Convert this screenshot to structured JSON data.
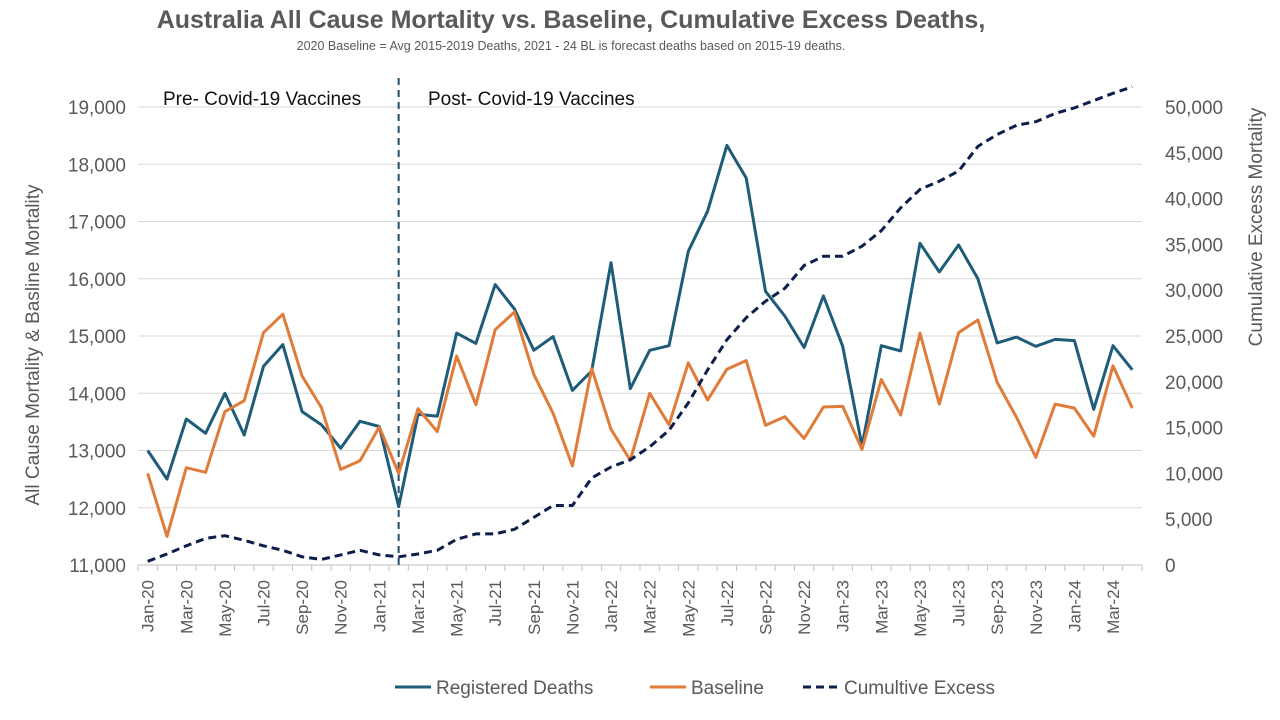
{
  "chart_data": {
    "type": "line",
    "title": "Australia All Cause Mortality vs. Baseline, Cumulative Excess Deaths,",
    "subtitle": "2020 Baseline = Avg 2015-2019 Deaths, 2021 - 24 BL is forecast deaths based on 2015-19 deaths.",
    "ylabel": "All Cause Mortality & Basline Mortality",
    "y2label": "Cumulative Excess Mortality",
    "ylim": [
      11000,
      19000
    ],
    "y2lim": [
      0,
      50000
    ],
    "y_ticks": [
      "11,000",
      "12,000",
      "13,000",
      "14,000",
      "15,000",
      "16,000",
      "17,000",
      "18,000",
      "19,000"
    ],
    "y2_ticks": [
      "0",
      "5,000",
      "10,000",
      "15,000",
      "20,000",
      "25,000",
      "30,000",
      "35,000",
      "40,000",
      "45,000",
      "50,000"
    ],
    "x": [
      "Jan-20",
      "Feb-20",
      "Mar-20",
      "Apr-20",
      "May-20",
      "Jun-20",
      "Jul-20",
      "Aug-20",
      "Sep-20",
      "Oct-20",
      "Nov-20",
      "Dec-20",
      "Jan-21",
      "Feb-21",
      "Mar-21",
      "Apr-21",
      "May-21",
      "Jun-21",
      "Jul-21",
      "Aug-21",
      "Sep-21",
      "Oct-21",
      "Nov-21",
      "Dec-21",
      "Jan-22",
      "Feb-22",
      "Mar-22",
      "Apr-22",
      "May-22",
      "Jun-22",
      "Jul-22",
      "Aug-22",
      "Sep-22",
      "Oct-22",
      "Nov-22",
      "Dec-22",
      "Jan-23",
      "Feb-23",
      "Mar-23",
      "Apr-23",
      "May-23",
      "Jun-23",
      "Jul-23",
      "Aug-23",
      "Sep-23",
      "Oct-23",
      "Nov-23",
      "Dec-23",
      "Jan-24",
      "Feb-24",
      "Mar-24",
      "Apr-24"
    ],
    "x_tick_labels": [
      "Jan-20",
      "Mar-20",
      "May-20",
      "Jul-20",
      "Sep-20",
      "Nov-20",
      "Jan-21",
      "Mar-21",
      "May-21",
      "Jul-21",
      "Sep-21",
      "Nov-21",
      "Jan-22",
      "Mar-22",
      "May-22",
      "Jul-22",
      "Sep-22",
      "Nov-22",
      "Jan-23",
      "Mar-23",
      "May-23",
      "Jul-23",
      "Sep-23",
      "Nov-23",
      "Jan-24",
      "Mar-24"
    ],
    "series": [
      {
        "name": "Registered Deaths",
        "axis": "left",
        "color": "#1f5c7a",
        "style": "solid",
        "values": [
          13000,
          12500,
          13550,
          13300,
          14000,
          13270,
          14470,
          14850,
          13680,
          13450,
          13040,
          13510,
          13420,
          12020,
          13630,
          13600,
          15050,
          14870,
          15900,
          15470,
          14750,
          14990,
          14050,
          14390,
          16280,
          14080,
          14750,
          14830,
          16480,
          17180,
          18330,
          17760,
          15780,
          15350,
          14800,
          15700,
          14820,
          13080,
          14830,
          14740,
          16620,
          16120,
          16590,
          16000,
          14880,
          14980,
          14820,
          14940,
          14920,
          13720,
          14830,
          14410
        ]
      },
      {
        "name": "Baseline",
        "axis": "left",
        "color": "#e07b39",
        "style": "solid",
        "values": [
          12600,
          11500,
          12700,
          12620,
          13680,
          13870,
          15060,
          15380,
          14300,
          13750,
          12670,
          12820,
          13410,
          12600,
          13730,
          13330,
          14650,
          13800,
          15110,
          15420,
          14330,
          13650,
          12730,
          14430,
          13370,
          12830,
          14000,
          13450,
          14530,
          13880,
          14420,
          14570,
          13440,
          13590,
          13210,
          13760,
          13770,
          13020,
          14240,
          13620,
          15050,
          13810,
          15060,
          15280,
          14190,
          13580,
          12880,
          13810,
          13740,
          13250,
          14480,
          13740
        ]
      },
      {
        "name": "Cumultive Excess",
        "axis": "right",
        "color": "#0d1e4a",
        "style": "dashed",
        "values": [
          400,
          1200,
          2100,
          2900,
          3200,
          2700,
          2100,
          1600,
          900,
          600,
          1100,
          1600,
          1100,
          900,
          1200,
          1600,
          2800,
          3400,
          3400,
          3900,
          5200,
          6500,
          6500,
          9500,
          10700,
          11500,
          12900,
          14700,
          17700,
          21300,
          24600,
          27000,
          28800,
          30200,
          32700,
          33700,
          33700,
          34800,
          36500,
          39000,
          41000,
          41900,
          43000,
          45700,
          47000,
          48000,
          48400,
          49300,
          49900,
          50700,
          51500,
          52200
        ]
      }
    ],
    "annotations": [
      "Pre- Covid-19 Vaccines",
      "Post- Covid-19 Vaccines"
    ],
    "divider_at": "Feb-21",
    "legend_position": "bottom",
    "grid": true
  }
}
